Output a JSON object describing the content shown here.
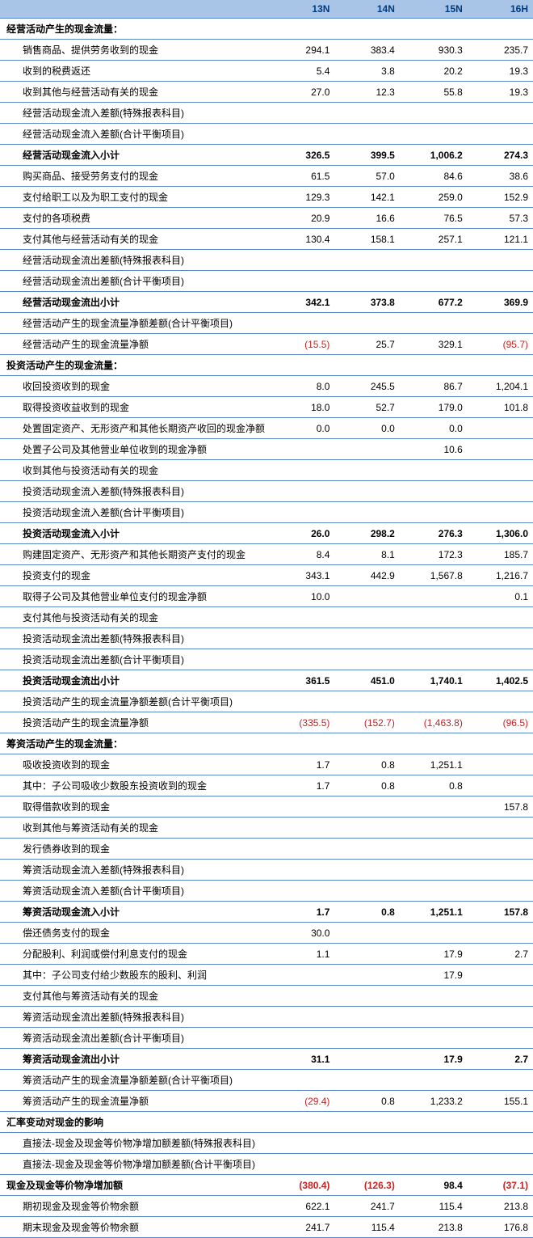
{
  "columns": [
    "13N",
    "14N",
    "15N",
    "16H"
  ],
  "rows": [
    {
      "label": "经营活动产生的现金流量：",
      "indent": false,
      "bold": true,
      "vals": [
        "",
        "",
        "",
        ""
      ]
    },
    {
      "label": "销售商品、提供劳务收到的现金",
      "indent": true,
      "bold": false,
      "vals": [
        "294.1",
        "383.4",
        "930.3",
        "235.7"
      ]
    },
    {
      "label": "收到的税费返还",
      "indent": true,
      "bold": false,
      "vals": [
        "5.4",
        "3.8",
        "20.2",
        "19.3"
      ]
    },
    {
      "label": "收到其他与经营活动有关的现金",
      "indent": true,
      "bold": false,
      "vals": [
        "27.0",
        "12.3",
        "55.8",
        "19.3"
      ]
    },
    {
      "label": "经营活动现金流入差额(特殊报表科目)",
      "indent": true,
      "bold": false,
      "vals": [
        "",
        "",
        "",
        ""
      ]
    },
    {
      "label": "经营活动现金流入差额(合计平衡项目)",
      "indent": true,
      "bold": false,
      "vals": [
        "",
        "",
        "",
        ""
      ]
    },
    {
      "label": "经营活动现金流入小计",
      "indent": true,
      "bold": true,
      "vals": [
        "326.5",
        "399.5",
        "1,006.2",
        "274.3"
      ]
    },
    {
      "label": "购买商品、接受劳务支付的现金",
      "indent": true,
      "bold": false,
      "vals": [
        "61.5",
        "57.0",
        "84.6",
        "38.6"
      ]
    },
    {
      "label": "支付给职工以及为职工支付的现金",
      "indent": true,
      "bold": false,
      "vals": [
        "129.3",
        "142.1",
        "259.0",
        "152.9"
      ]
    },
    {
      "label": "支付的各项税费",
      "indent": true,
      "bold": false,
      "vals": [
        "20.9",
        "16.6",
        "76.5",
        "57.3"
      ]
    },
    {
      "label": "支付其他与经营活动有关的现金",
      "indent": true,
      "bold": false,
      "vals": [
        "130.4",
        "158.1",
        "257.1",
        "121.1"
      ]
    },
    {
      "label": "经营活动现金流出差额(特殊报表科目)",
      "indent": true,
      "bold": false,
      "vals": [
        "",
        "",
        "",
        ""
      ]
    },
    {
      "label": "经营活动现金流出差额(合计平衡项目)",
      "indent": true,
      "bold": false,
      "vals": [
        "",
        "",
        "",
        ""
      ]
    },
    {
      "label": "经营活动现金流出小计",
      "indent": true,
      "bold": true,
      "vals": [
        "342.1",
        "373.8",
        "677.2",
        "369.9"
      ]
    },
    {
      "label": "经营活动产生的现金流量净额差额(合计平衡项目)",
      "indent": true,
      "bold": false,
      "vals": [
        "",
        "",
        "",
        ""
      ]
    },
    {
      "label": "经营活动产生的现金流量净额",
      "indent": true,
      "bold": false,
      "vals": [
        "(15.5)",
        "25.7",
        "329.1",
        "(95.7)"
      ],
      "neg": [
        true,
        false,
        false,
        true
      ]
    },
    {
      "label": "投资活动产生的现金流量：",
      "indent": false,
      "bold": true,
      "vals": [
        "",
        "",
        "",
        ""
      ]
    },
    {
      "label": "收回投资收到的现金",
      "indent": true,
      "bold": false,
      "vals": [
        "8.0",
        "245.5",
        "86.7",
        "1,204.1"
      ]
    },
    {
      "label": "取得投资收益收到的现金",
      "indent": true,
      "bold": false,
      "vals": [
        "18.0",
        "52.7",
        "179.0",
        "101.8"
      ]
    },
    {
      "label": "处置固定资产、无形资产和其他长期资产收回的现金净额",
      "indent": true,
      "bold": false,
      "vals": [
        "0.0",
        "0.0",
        "0.0",
        ""
      ]
    },
    {
      "label": "处置子公司及其他营业单位收到的现金净额",
      "indent": true,
      "bold": false,
      "vals": [
        "",
        "",
        "10.6",
        ""
      ]
    },
    {
      "label": "收到其他与投资活动有关的现金",
      "indent": true,
      "bold": false,
      "vals": [
        "",
        "",
        "",
        ""
      ]
    },
    {
      "label": "投资活动现金流入差额(特殊报表科目)",
      "indent": true,
      "bold": false,
      "vals": [
        "",
        "",
        "",
        ""
      ]
    },
    {
      "label": "投资活动现金流入差额(合计平衡项目)",
      "indent": true,
      "bold": false,
      "vals": [
        "",
        "",
        "",
        ""
      ]
    },
    {
      "label": "投资活动现金流入小计",
      "indent": true,
      "bold": true,
      "vals": [
        "26.0",
        "298.2",
        "276.3",
        "1,306.0"
      ]
    },
    {
      "label": "购建固定资产、无形资产和其他长期资产支付的现金",
      "indent": true,
      "bold": false,
      "vals": [
        "8.4",
        "8.1",
        "172.3",
        "185.7"
      ]
    },
    {
      "label": "投资支付的现金",
      "indent": true,
      "bold": false,
      "vals": [
        "343.1",
        "442.9",
        "1,567.8",
        "1,216.7"
      ]
    },
    {
      "label": "取得子公司及其他营业单位支付的现金净额",
      "indent": true,
      "bold": false,
      "vals": [
        "10.0",
        "",
        "",
        "0.1"
      ]
    },
    {
      "label": "支付其他与投资活动有关的现金",
      "indent": true,
      "bold": false,
      "vals": [
        "",
        "",
        "",
        ""
      ]
    },
    {
      "label": "投资活动现金流出差额(特殊报表科目)",
      "indent": true,
      "bold": false,
      "vals": [
        "",
        "",
        "",
        ""
      ]
    },
    {
      "label": "投资活动现金流出差额(合计平衡项目)",
      "indent": true,
      "bold": false,
      "vals": [
        "",
        "",
        "",
        ""
      ]
    },
    {
      "label": "投资活动现金流出小计",
      "indent": true,
      "bold": true,
      "vals": [
        "361.5",
        "451.0",
        "1,740.1",
        "1,402.5"
      ]
    },
    {
      "label": "投资活动产生的现金流量净额差额(合计平衡项目)",
      "indent": true,
      "bold": false,
      "vals": [
        "",
        "",
        "",
        ""
      ]
    },
    {
      "label": "投资活动产生的现金流量净额",
      "indent": true,
      "bold": false,
      "vals": [
        "(335.5)",
        "(152.7)",
        "(1,463.8)",
        "(96.5)"
      ],
      "neg": [
        true,
        true,
        true,
        true
      ]
    },
    {
      "label": "筹资活动产生的现金流量：",
      "indent": false,
      "bold": true,
      "vals": [
        "",
        "",
        "",
        ""
      ]
    },
    {
      "label": "吸收投资收到的现金",
      "indent": true,
      "bold": false,
      "vals": [
        "1.7",
        "0.8",
        "1,251.1",
        ""
      ]
    },
    {
      "label": "其中：子公司吸收少数股东投资收到的现金",
      "indent": true,
      "bold": false,
      "vals": [
        "1.7",
        "0.8",
        "0.8",
        ""
      ]
    },
    {
      "label": "取得借款收到的现金",
      "indent": true,
      "bold": false,
      "vals": [
        "",
        "",
        "",
        "157.8"
      ]
    },
    {
      "label": "收到其他与筹资活动有关的现金",
      "indent": true,
      "bold": false,
      "vals": [
        "",
        "",
        "",
        ""
      ]
    },
    {
      "label": "发行债券收到的现金",
      "indent": true,
      "bold": false,
      "vals": [
        "",
        "",
        "",
        ""
      ]
    },
    {
      "label": "筹资活动现金流入差额(特殊报表科目)",
      "indent": true,
      "bold": false,
      "vals": [
        "",
        "",
        "",
        ""
      ]
    },
    {
      "label": "筹资活动现金流入差额(合计平衡项目)",
      "indent": true,
      "bold": false,
      "vals": [
        "",
        "",
        "",
        ""
      ]
    },
    {
      "label": "筹资活动现金流入小计",
      "indent": true,
      "bold": true,
      "vals": [
        "1.7",
        "0.8",
        "1,251.1",
        "157.8"
      ]
    },
    {
      "label": "偿还债务支付的现金",
      "indent": true,
      "bold": false,
      "vals": [
        "30.0",
        "",
        "",
        ""
      ]
    },
    {
      "label": "分配股利、利润或偿付利息支付的现金",
      "indent": true,
      "bold": false,
      "vals": [
        "1.1",
        "",
        "17.9",
        "2.7"
      ]
    },
    {
      "label": "其中：子公司支付给少数股东的股利、利润",
      "indent": true,
      "bold": false,
      "vals": [
        "",
        "",
        "17.9",
        ""
      ]
    },
    {
      "label": "支付其他与筹资活动有关的现金",
      "indent": true,
      "bold": false,
      "vals": [
        "",
        "",
        "",
        ""
      ]
    },
    {
      "label": "筹资活动现金流出差额(特殊报表科目)",
      "indent": true,
      "bold": false,
      "vals": [
        "",
        "",
        "",
        ""
      ]
    },
    {
      "label": "筹资活动现金流出差额(合计平衡项目)",
      "indent": true,
      "bold": false,
      "vals": [
        "",
        "",
        "",
        ""
      ]
    },
    {
      "label": "筹资活动现金流出小计",
      "indent": true,
      "bold": true,
      "vals": [
        "31.1",
        "",
        "17.9",
        "2.7"
      ]
    },
    {
      "label": "筹资活动产生的现金流量净额差额(合计平衡项目)",
      "indent": true,
      "bold": false,
      "vals": [
        "",
        "",
        "",
        ""
      ]
    },
    {
      "label": "筹资活动产生的现金流量净额",
      "indent": true,
      "bold": false,
      "vals": [
        "(29.4)",
        "0.8",
        "1,233.2",
        "155.1"
      ],
      "neg": [
        true,
        false,
        false,
        false
      ]
    },
    {
      "label": "汇率变动对现金的影响",
      "indent": false,
      "bold": true,
      "vals": [
        "",
        "",
        "",
        ""
      ]
    },
    {
      "label": "直接法-现金及现金等价物净增加额差额(特殊报表科目)",
      "indent": true,
      "bold": false,
      "vals": [
        "",
        "",
        "",
        ""
      ]
    },
    {
      "label": "直接法-现金及现金等价物净增加额差额(合计平衡项目)",
      "indent": true,
      "bold": false,
      "vals": [
        "",
        "",
        "",
        ""
      ]
    },
    {
      "label": "现金及现金等价物净增加额",
      "indent": false,
      "bold": true,
      "vals": [
        "(380.4)",
        "(126.3)",
        "98.4",
        "(37.1)"
      ],
      "neg": [
        true,
        true,
        false,
        true
      ]
    },
    {
      "label": "期初现金及现金等价物余额",
      "indent": true,
      "bold": false,
      "vals": [
        "622.1",
        "241.7",
        "115.4",
        "213.8"
      ]
    },
    {
      "label": "期末现金及现金等价物余额",
      "indent": true,
      "bold": false,
      "vals": [
        "241.7",
        "115.4",
        "213.8",
        "176.8"
      ]
    }
  ]
}
